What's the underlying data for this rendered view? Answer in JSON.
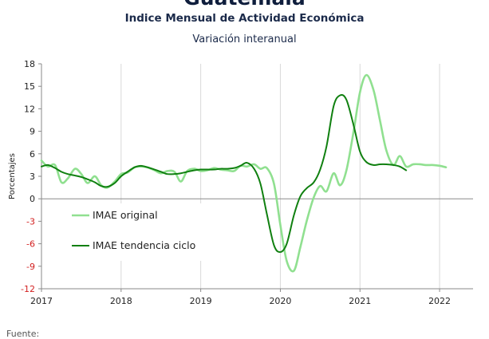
{
  "header": {
    "title": "Guatemala",
    "subtitle": "Indice Mensual de  Actividad Económica",
    "subtitle2": "Variación interanual"
  },
  "footer": {
    "source": "Fuente:"
  },
  "chart_data": {
    "type": "line",
    "ylabel": "Porcentajes",
    "ylim": [
      -12,
      18
    ],
    "yticks": [
      18,
      15,
      12,
      9,
      6,
      3,
      0,
      -3,
      -6,
      -9,
      -12
    ],
    "xlim": [
      2017,
      2022.42
    ],
    "xticks": [
      "2017",
      "2018",
      "2019",
      "2020",
      "2021",
      "2022"
    ],
    "grid": "vertical",
    "legend_position": "lower-left",
    "series": [
      {
        "name": "IMAE original",
        "color": "#90e090",
        "x": [
          2017.0,
          2017.08,
          2017.17,
          2017.25,
          2017.33,
          2017.42,
          2017.5,
          2017.58,
          2017.67,
          2017.75,
          2017.83,
          2017.92,
          2018.0,
          2018.08,
          2018.17,
          2018.25,
          2018.33,
          2018.42,
          2018.5,
          2018.58,
          2018.67,
          2018.75,
          2018.83,
          2018.92,
          2019.0,
          2019.08,
          2019.17,
          2019.25,
          2019.33,
          2019.42,
          2019.5,
          2019.58,
          2019.67,
          2019.75,
          2019.83,
          2019.92,
          2020.0,
          2020.08,
          2020.17,
          2020.25,
          2020.33,
          2020.42,
          2020.5,
          2020.58,
          2020.67,
          2020.75,
          2020.83,
          2020.92,
          2021.0,
          2021.08,
          2021.17,
          2021.25,
          2021.33,
          2021.42,
          2021.5,
          2021.58,
          2021.67,
          2021.75,
          2021.83,
          2021.92,
          2022.0,
          2022.08,
          2022.17,
          2022.25,
          2022.33,
          2022.42
        ],
        "y": [
          5.1,
          4.3,
          4.5,
          2.2,
          2.7,
          4.0,
          3.3,
          2.1,
          3.0,
          1.8,
          1.5,
          2.3,
          3.3,
          3.5,
          4.2,
          4.3,
          4.2,
          3.8,
          3.4,
          3.7,
          3.6,
          2.3,
          3.7,
          4.0,
          3.7,
          3.8,
          4.1,
          3.9,
          3.8,
          3.7,
          4.4,
          4.3,
          4.6,
          4.0,
          4.1,
          2.0,
          -3.5,
          -8.3,
          -9.6,
          -6.5,
          -3.0,
          0.2,
          1.7,
          1.0,
          3.4,
          1.8,
          3.8,
          9.0,
          14.2,
          16.5,
          14.5,
          10.5,
          6.5,
          4.5,
          5.7,
          4.3,
          4.6,
          4.6,
          4.5,
          4.5,
          4.4,
          4.2,
          null,
          null,
          null,
          null
        ]
      },
      {
        "name": "IMAE tendencia ciclo",
        "color": "#108010",
        "x": [
          2017.0,
          2017.08,
          2017.17,
          2017.25,
          2017.33,
          2017.42,
          2017.5,
          2017.58,
          2017.67,
          2017.75,
          2017.83,
          2017.92,
          2018.0,
          2018.08,
          2018.17,
          2018.25,
          2018.33,
          2018.42,
          2018.5,
          2018.58,
          2018.67,
          2018.75,
          2018.83,
          2018.92,
          2019.0,
          2019.08,
          2019.17,
          2019.25,
          2019.33,
          2019.42,
          2019.5,
          2019.58,
          2019.67,
          2019.75,
          2019.83,
          2019.92,
          2020.0,
          2020.08,
          2020.17,
          2020.25,
          2020.33,
          2020.42,
          2020.5,
          2020.58,
          2020.67,
          2020.75,
          2020.83,
          2020.92,
          2021.0,
          2021.08,
          2021.17,
          2021.25,
          2021.33,
          2021.42,
          2021.5,
          2021.58,
          2021.67,
          2021.75,
          2021.83,
          2021.92,
          2022.0,
          2022.08,
          2022.17,
          2022.25,
          2022.33,
          2022.42
        ],
        "y": [
          4.3,
          4.5,
          4.1,
          3.6,
          3.3,
          3.1,
          2.9,
          2.6,
          2.2,
          1.7,
          1.6,
          2.1,
          3.0,
          3.6,
          4.2,
          4.4,
          4.2,
          3.9,
          3.6,
          3.3,
          3.3,
          3.4,
          3.6,
          3.8,
          3.9,
          3.9,
          3.9,
          4.0,
          4.0,
          4.1,
          4.4,
          4.8,
          4.0,
          2.0,
          -2.0,
          -6.2,
          -7.1,
          -6.0,
          -2.2,
          0.3,
          1.4,
          2.2,
          3.9,
          7.0,
          12.4,
          13.8,
          13.2,
          9.8,
          6.3,
          4.9,
          4.5,
          4.6,
          4.6,
          4.5,
          4.3,
          3.8,
          null,
          null,
          null,
          null,
          null,
          null,
          null,
          null,
          null,
          null
        ]
      }
    ]
  }
}
